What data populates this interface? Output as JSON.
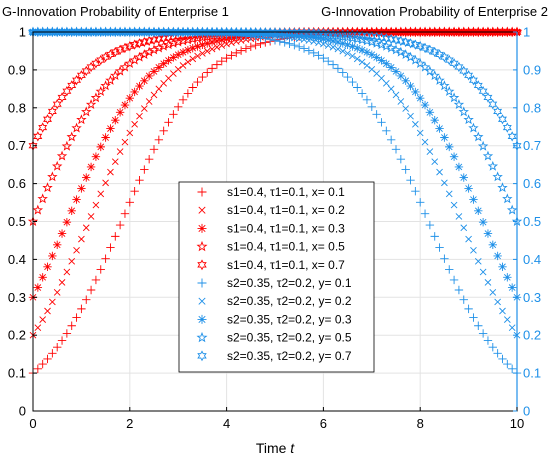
{
  "chart_data": {
    "type": "scatter",
    "titles": {
      "left": "G-Innovation Probability of Enterprise 1",
      "right": "G-Innovation Probability of Enterprise 2"
    },
    "xlabel_prefix": "Time",
    "xlabel_var": "t",
    "xlim": [
      0,
      10
    ],
    "ylim": [
      0,
      1
    ],
    "x_ticks": [
      "0",
      "2",
      "4",
      "6",
      "8",
      "10"
    ],
    "y_ticks_left": [
      "0",
      "0.1",
      "0.2",
      "0.3",
      "0.4",
      "0.5",
      "0.6",
      "0.7",
      "0.8",
      "0.9",
      "1"
    ],
    "y_ticks_right": [
      "0",
      "0.1",
      "0.2",
      "0.3",
      "0.4",
      "0.5",
      "0.6",
      "0.7",
      "0.8",
      "0.9",
      "1"
    ],
    "grid": true,
    "legend_position": "center",
    "colors": {
      "enterprise1": "#ff0000",
      "enterprise2": "#1e90e8",
      "left_axis": "#000000",
      "right_axis": "#1e90e8"
    },
    "series": [
      {
        "name": "s1=0.4, τ1=0.1, x= 0.1",
        "marker": "plus",
        "group": "enterprise1",
        "model": "rising",
        "start": 0.1,
        "rate": 1.2
      },
      {
        "name": "s1=0.4, τ1=0.1, x= 0.2",
        "marker": "cross",
        "group": "enterprise1",
        "model": "rising",
        "start": 0.2,
        "rate": 1.2
      },
      {
        "name": "s1=0.4, τ1=0.1, x= 0.3",
        "marker": "asterisk",
        "group": "enterprise1",
        "model": "rising",
        "start": 0.3,
        "rate": 1.2
      },
      {
        "name": "s1=0.4, τ1=0.1, x= 0.5",
        "marker": "pentagram",
        "group": "enterprise1",
        "model": "rising",
        "start": 0.5,
        "rate": 1.2
      },
      {
        "name": "s1=0.4, τ1=0.1, x= 0.7",
        "marker": "hexagram",
        "group": "enterprise1",
        "model": "rising",
        "start": 0.7,
        "rate": 1.2
      },
      {
        "name": "s2=0.35, τ2=0.2, y= 0.1",
        "marker": "plus",
        "group": "enterprise2",
        "model": "falling",
        "end": 0.1,
        "rate": 1.2
      },
      {
        "name": "s2=0.35, τ2=0.2, y= 0.2",
        "marker": "cross",
        "group": "enterprise2",
        "model": "falling",
        "end": 0.2,
        "rate": 1.2
      },
      {
        "name": "s2=0.35, τ2=0.2, y= 0.3",
        "marker": "asterisk",
        "group": "enterprise2",
        "model": "falling",
        "end": 0.3,
        "rate": 1.2
      },
      {
        "name": "s2=0.35, τ2=0.2, y= 0.5",
        "marker": "pentagram",
        "group": "enterprise2",
        "model": "falling",
        "end": 0.5,
        "rate": 1.2
      },
      {
        "name": "s2=0.35, τ2=0.2, y= 0.7",
        "marker": "hexagram",
        "group": "enterprise2",
        "model": "falling",
        "end": 0.7,
        "rate": 1.2
      }
    ],
    "x_sample_step": 0.1
  }
}
